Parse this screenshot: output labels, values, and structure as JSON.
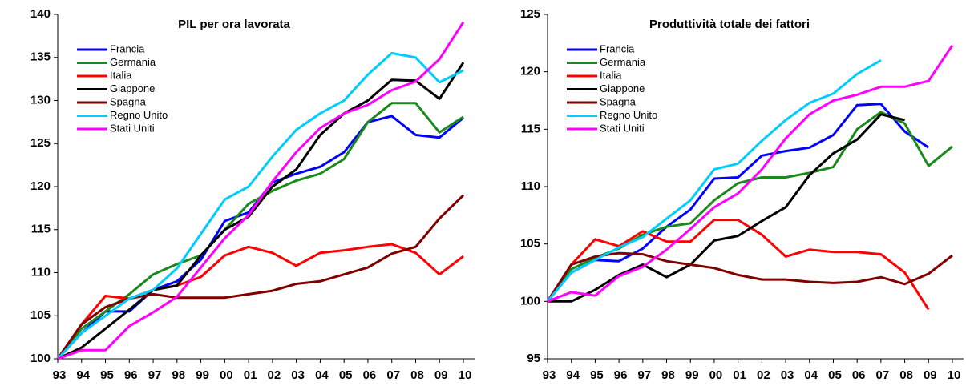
{
  "chart_data": [
    {
      "type": "line",
      "title": "PIL per ora lavorata",
      "categories": [
        "93",
        "94",
        "95",
        "96",
        "97",
        "98",
        "99",
        "00",
        "01",
        "02",
        "03",
        "04",
        "05",
        "06",
        "07",
        "08",
        "09",
        "10"
      ],
      "ylim": [
        100,
        140
      ],
      "yticks": [
        100,
        105,
        110,
        115,
        120,
        125,
        130,
        135,
        140
      ],
      "series": [
        {
          "name": "Francia",
          "color": "#0000ff",
          "values": [
            100,
            103,
            105.5,
            105.5,
            108,
            109,
            111.5,
            116,
            117,
            120.5,
            121.5,
            122.3,
            124,
            127.5,
            128.2,
            126,
            125.7,
            128
          ]
        },
        {
          "name": "Germania",
          "color": "#1a8a1a",
          "values": [
            100,
            103.5,
            105.5,
            107.5,
            109.8,
            111,
            112,
            115,
            118,
            119.5,
            120.7,
            121.5,
            123.2,
            127.5,
            129.7,
            129.7,
            126.3,
            128.1
          ]
        },
        {
          "name": "Italia",
          "color": "#ff0000",
          "values": [
            100,
            104,
            107.3,
            107,
            108,
            108.5,
            109.5,
            112,
            113,
            112.3,
            110.8,
            112.3,
            112.6,
            113,
            113.3,
            112.3,
            109.8,
            111.9
          ]
        },
        {
          "name": "Giappone",
          "color": "#000000",
          "values": [
            100,
            101.3,
            103.5,
            105.7,
            108,
            108.5,
            112,
            115,
            116.5,
            120,
            122,
            126,
            128.5,
            130,
            132.4,
            132.3,
            130.2,
            134.4
          ]
        },
        {
          "name": "Spagna",
          "color": "#800000",
          "values": [
            100,
            104,
            106,
            107,
            107.5,
            107.1,
            107.1,
            107.1,
            107.5,
            107.9,
            108.7,
            109,
            109.8,
            110.6,
            112.2,
            113,
            116.3,
            119
          ]
        },
        {
          "name": "Regno Unito",
          "color": "#00ccff",
          "values": [
            100,
            103,
            105,
            107,
            108,
            110.5,
            114.5,
            118.5,
            120,
            123.5,
            126.6,
            128.5,
            130,
            133,
            135.5,
            135,
            132.1,
            133.5
          ]
        },
        {
          "name": "Stati Uniti",
          "color": "#ff00ff",
          "values": [
            100,
            101,
            101,
            103.8,
            105.4,
            107.2,
            110.6,
            114,
            116.7,
            120.6,
            124,
            126.8,
            128.5,
            129.5,
            131.2,
            132.2,
            134.8,
            139.1
          ]
        }
      ]
    },
    {
      "type": "line",
      "title": "Produttività totale dei fattori",
      "categories": [
        "93",
        "94",
        "95",
        "96",
        "97",
        "98",
        "99",
        "00",
        "01",
        "02",
        "03",
        "04",
        "05",
        "06",
        "07",
        "08",
        "09",
        "10"
      ],
      "ylim": [
        95,
        125
      ],
      "yticks": [
        95,
        100,
        105,
        110,
        115,
        120,
        125
      ],
      "series": [
        {
          "name": "Francia",
          "color": "#0000ff",
          "values": [
            100,
            102.5,
            103.6,
            103.5,
            104.6,
            106.5,
            108,
            110.7,
            110.8,
            112.7,
            113.1,
            113.4,
            114.5,
            117.1,
            117.2,
            114.8,
            113.4,
            null
          ]
        },
        {
          "name": "Germania",
          "color": "#1a8a1a",
          "values": [
            100,
            102.8,
            103.8,
            104.6,
            105.8,
            106.5,
            106.8,
            108.8,
            110.3,
            110.8,
            110.8,
            111.2,
            111.7,
            115,
            116.5,
            115.5,
            111.8,
            113.5
          ]
        },
        {
          "name": "Italia",
          "color": "#ff0000",
          "values": [
            100,
            103.2,
            105.4,
            104.8,
            106.1,
            105.2,
            105.2,
            107.1,
            107.1,
            105.8,
            103.9,
            104.5,
            104.3,
            104.3,
            104.1,
            102.5,
            99.3,
            null
          ]
        },
        {
          "name": "Giappone",
          "color": "#000000",
          "values": [
            100,
            100,
            101,
            102.3,
            103.2,
            102.1,
            103.2,
            105.3,
            105.7,
            107,
            108.2,
            111,
            112.9,
            114.1,
            116.3,
            115.8,
            null,
            null
          ]
        },
        {
          "name": "Spagna",
          "color": "#800000",
          "values": [
            100,
            103.2,
            103.9,
            104.2,
            104.1,
            103.5,
            103.2,
            102.9,
            102.3,
            101.9,
            101.9,
            101.7,
            101.6,
            101.7,
            102.1,
            101.5,
            102.4,
            104
          ]
        },
        {
          "name": "Regno Unito",
          "color": "#00ccff",
          "values": [
            100,
            102.5,
            103.6,
            104.7,
            105.6,
            107.2,
            108.8,
            111.5,
            112,
            114,
            115.8,
            117.3,
            118.1,
            119.8,
            121,
            null,
            null,
            null
          ]
        },
        {
          "name": "Stati Uniti",
          "color": "#ff00ff",
          "values": [
            100,
            100.8,
            100.5,
            102.2,
            103,
            104.5,
            106.3,
            108.2,
            109.4,
            111.5,
            114.2,
            116.3,
            117.5,
            118,
            118.7,
            118.7,
            119.2,
            122.3
          ]
        }
      ]
    }
  ]
}
